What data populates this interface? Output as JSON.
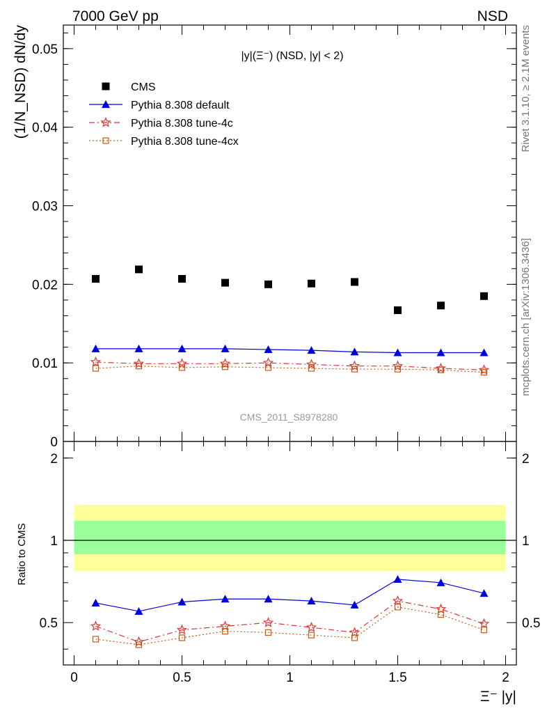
{
  "header": {
    "left": "7000 GeV pp",
    "right": "NSD"
  },
  "side_labels": {
    "rivet": "Rivet 3.1.10, ≥ 2.1M events",
    "mcplots": "mcplots.cern.ch [arXiv:1306.3436]"
  },
  "main_plot": {
    "title": "|y|(Ξ⁻) (NSD, |y| < 2)",
    "ylabel": "(1/N_NSD) dN/dy",
    "watermark": "CMS_2011_S8978280",
    "yticks": [
      "0",
      "0.01",
      "0.02",
      "0.03",
      "0.04",
      "0.05"
    ]
  },
  "ratio_plot": {
    "ylabel": "Ratio to CMS",
    "yticks": [
      "0.5",
      "1",
      "2"
    ],
    "xticks": [
      "0",
      "0.5",
      "1",
      "1.5",
      "2"
    ],
    "xlabel": "Ξ⁻ |y|"
  },
  "legend": [
    {
      "name": "CMS",
      "color": "#000000",
      "marker": "square",
      "line": "none"
    },
    {
      "name": "Pythia 8.308 default",
      "color": "#0000dd",
      "marker": "triangle",
      "line": "solid"
    },
    {
      "name": "Pythia 8.308 tune-4c",
      "color": "#dd3333",
      "marker": "star",
      "line": "dashdot"
    },
    {
      "name": "Pythia 8.308 tune-4cx",
      "color": "#cc5511",
      "marker": "opensquare",
      "line": "dotted"
    }
  ],
  "chart_data": {
    "type": "scatter",
    "x": [
      0.1,
      0.3,
      0.5,
      0.7,
      0.9,
      1.1,
      1.3,
      1.5,
      1.7,
      1.9
    ],
    "xlim": [
      -0.05,
      2.05
    ],
    "ylim": [
      0,
      0.053
    ],
    "series": [
      {
        "name": "CMS",
        "values": [
          0.0207,
          0.0219,
          0.0207,
          0.0202,
          0.02,
          0.0201,
          0.0203,
          0.0167,
          0.0173,
          0.0185
        ]
      },
      {
        "name": "Pythia 8.308 default",
        "values": [
          0.0118,
          0.0118,
          0.0118,
          0.0118,
          0.0117,
          0.0116,
          0.0114,
          0.0113,
          0.0113,
          0.0113
        ]
      },
      {
        "name": "Pythia 8.308 tune-4c",
        "values": [
          0.0101,
          0.0099,
          0.0099,
          0.0099,
          0.01,
          0.0098,
          0.0096,
          0.0096,
          0.0093,
          0.0091
        ]
      },
      {
        "name": "Pythia 8.308 tune-4cx",
        "values": [
          0.0093,
          0.0096,
          0.0094,
          0.0095,
          0.0094,
          0.0093,
          0.0092,
          0.0092,
          0.0091,
          0.0088
        ]
      }
    ],
    "ratio": {
      "ylim": [
        0.35,
        2.3
      ],
      "log_y": true,
      "band_yellow": [
        0.77,
        1.35
      ],
      "band_green": [
        0.89,
        1.18
      ],
      "series": [
        {
          "name": "Pythia 8.308 default",
          "values": [
            0.59,
            0.55,
            0.595,
            0.61,
            0.61,
            0.6,
            0.58,
            0.72,
            0.7,
            0.64
          ]
        },
        {
          "name": "Pythia 8.308 tune-4c",
          "values": [
            0.485,
            0.425,
            0.47,
            0.485,
            0.5,
            0.48,
            0.46,
            0.6,
            0.56,
            0.495
          ]
        },
        {
          "name": "Pythia 8.308 tune-4cx",
          "values": [
            0.435,
            0.415,
            0.44,
            0.465,
            0.46,
            0.45,
            0.44,
            0.57,
            0.535,
            0.47
          ]
        }
      ]
    }
  }
}
